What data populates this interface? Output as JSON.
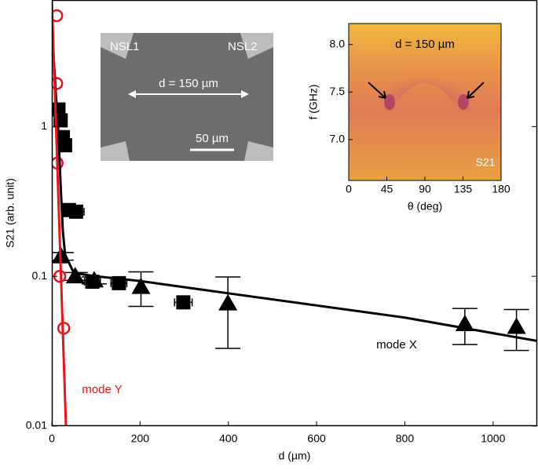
{
  "chart_data": [
    {
      "type": "scatter",
      "xlabel": "d (µm)",
      "ylabel": "S21 (arb. unit)",
      "xlim": [
        0,
        1100
      ],
      "xticks": [
        0,
        200,
        400,
        600,
        800,
        1000
      ],
      "ylim": [
        0.01,
        7
      ],
      "yticks": [
        0.01,
        0.1,
        1
      ],
      "log_y": true,
      "series": [
        {
          "marker": "square",
          "color": "#000000",
          "x": [
            15,
            20,
            25,
            30,
            39,
            55,
            92,
            152,
            298
          ],
          "values": [
            1.3,
            1.1,
            0.85,
            0.75,
            0.277,
            0.27,
            0.092,
            0.09,
            0.067
          ],
          "xerr": [
            10,
            10,
            10,
            10,
            12,
            18,
            18,
            18,
            20
          ]
        },
        {
          "marker": "triangle",
          "color": "#000000",
          "x": [
            21,
            53,
            96,
            202,
            399,
            936,
            1053
          ],
          "values": [
            0.136,
            0.1,
            0.094,
            0.085,
            0.066,
            0.048,
            0.046
          ],
          "errors": [
            0.008,
            0.006,
            0.005,
            0.022,
            0.033,
            0.013,
            0.014
          ]
        },
        {
          "marker": "circle",
          "color": "#e8141b",
          "x": [
            11,
            11,
            12,
            18,
            27
          ],
          "values": [
            5.5,
            1.94,
            0.57,
            0.1,
            0.045
          ]
        },
        {
          "marker": "line",
          "color": "#000000",
          "x": [
            3,
            10,
            15,
            20,
            25,
            30,
            50,
            100,
            200,
            400,
            800,
            1100
          ],
          "values": [
            3.3,
            1.5,
            0.9,
            0.4,
            0.2,
            0.14,
            0.105,
            0.1,
            0.093,
            0.077,
            0.053,
            0.037
          ]
        },
        {
          "marker": "line",
          "color": "#e8141b",
          "x": [
            0,
            32
          ],
          "values": [
            7,
            0.01
          ]
        }
      ],
      "annotations": [
        {
          "text": "mode X",
          "color": "#000000"
        },
        {
          "text": "mode Y",
          "color": "#e8141b"
        }
      ]
    },
    {
      "type": "heatmap",
      "xlabel": "θ (deg)",
      "ylabel": "f (GHz)",
      "title": "d = 150 µm",
      "label": "S21",
      "xlim": [
        0,
        180
      ],
      "xticks": [
        0,
        45,
        90,
        135,
        180
      ],
      "ylim": [
        6.57,
        8.22
      ],
      "yticks": [
        {
          "value": 7,
          "label": "7.0"
        },
        {
          "value": 7.5,
          "label": "7.5"
        },
        {
          "value": 8,
          "label": "8.0"
        }
      ]
    }
  ],
  "sem_inset": {
    "labels": [
      "NSL1",
      "NSL2"
    ],
    "distance": "d = 150 µm",
    "scale_bar": "50 µm"
  }
}
